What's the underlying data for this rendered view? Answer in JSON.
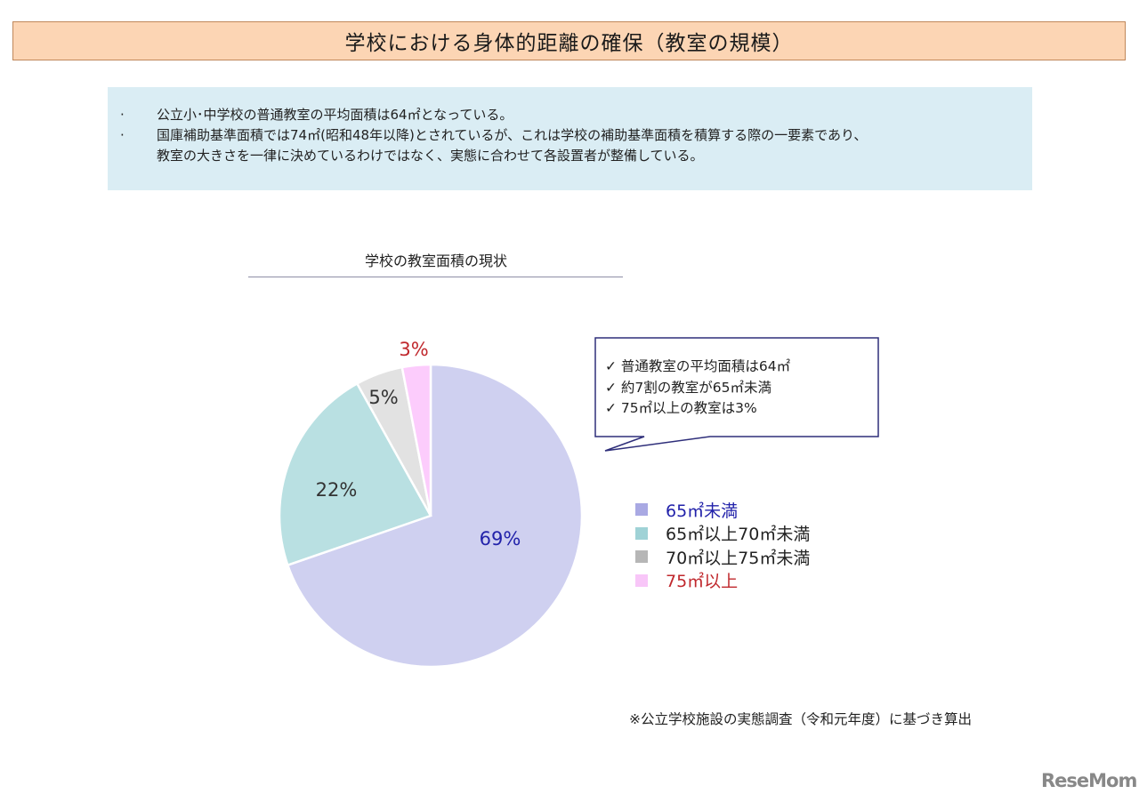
{
  "header": {
    "title": "学校における身体的距離の確保（教室の規模）"
  },
  "info": {
    "bullets": [
      {
        "marker": "·",
        "text": "公立小･中学校の普通教室の平均面積は64㎡となっている。"
      },
      {
        "marker": "·",
        "text": "国庫補助基準面積では74㎡(昭和48年以降)とされているが、これは学校の補助基準面積を積算する際の一要素であり、"
      },
      {
        "marker": "",
        "text": "教室の大きさを一律に決めているわけではなく、実態に合わせて各設置者が整備している。"
      }
    ]
  },
  "callout": {
    "items": [
      "✓ 普通教室の平均面積は64㎡",
      "✓ 約7割の教室が65㎡未満",
      "✓ 75㎡以上の教室は3%"
    ],
    "border_color": "#2e2e7a"
  },
  "footnote": "※公立学校施設の実態調査（令和元年度）に基づき算出",
  "logo": "ReseMom",
  "chart_data": {
    "type": "pie",
    "title": "学校の教室面積の現状",
    "categories": [
      "65㎡未満",
      "65㎡以上70㎡未満",
      "70㎡以上75㎡未満",
      "75㎡以上"
    ],
    "values": [
      69,
      22,
      5,
      3
    ],
    "labels": [
      "69%",
      "22%",
      "5%",
      "3%"
    ],
    "colors": [
      "#cfd0f0",
      "#b9e0e2",
      "#e2e2e2",
      "#fcccfc"
    ],
    "legend_swatch_colors": [
      "#a9a9e3",
      "#9fd2d6",
      "#b6b6b6",
      "#f8c6f8"
    ],
    "label_colors": [
      "#2222aa",
      "#333333",
      "#333333",
      "#c0282d"
    ],
    "legend_text_colors": [
      "#2222aa",
      "#222222",
      "#222222",
      "#c0282d"
    ],
    "start_angle": "12 o'clock, clockwise",
    "legend_position": "right"
  }
}
